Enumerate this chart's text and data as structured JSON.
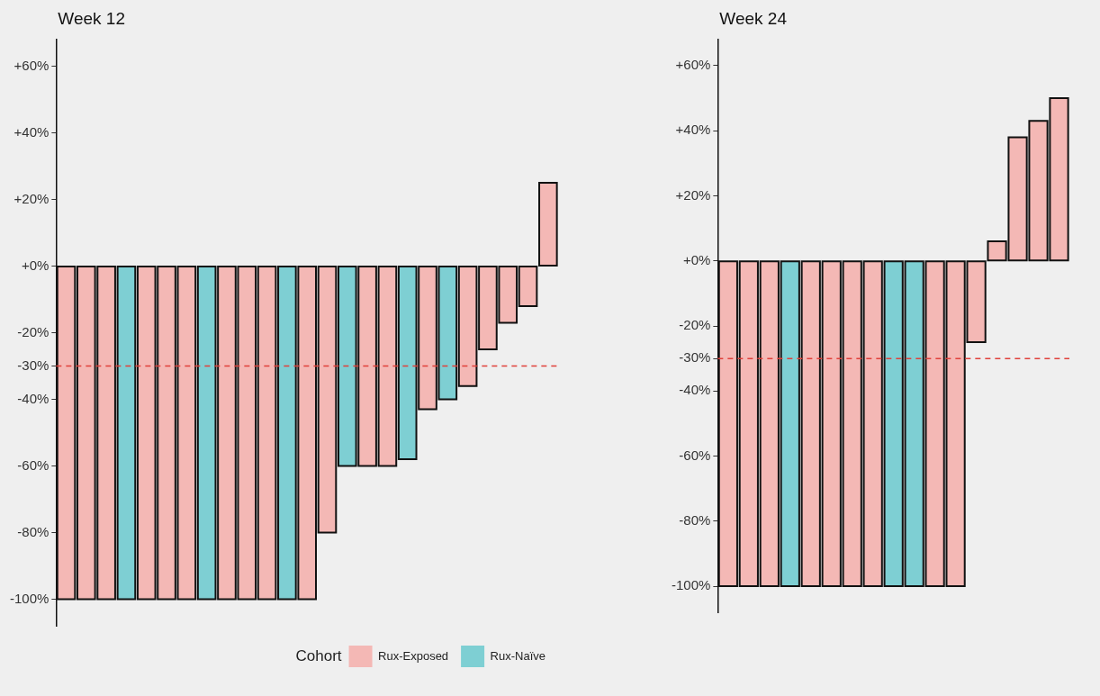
{
  "chart_data": [
    {
      "type": "bar",
      "title": "Week 12",
      "categories": [
        null,
        null,
        null,
        null,
        null,
        null,
        null,
        null,
        null,
        null,
        null,
        null,
        null,
        null,
        null,
        null,
        null,
        null,
        null,
        null,
        null,
        null,
        null,
        null,
        null
      ],
      "series": [
        {
          "name": "Rux-Exposed",
          "color": "#f4b8b5",
          "values": [
            -100,
            -100,
            -100,
            null,
            -100,
            -100,
            -100,
            null,
            -100,
            -100,
            -100,
            null,
            -100,
            -80,
            null,
            -60,
            -60,
            null,
            -43,
            null,
            -36,
            -25,
            -17,
            -12,
            25
          ]
        },
        {
          "name": "Rux-Naïve",
          "color": "#7ecfd3",
          "values": [
            null,
            null,
            null,
            -100,
            null,
            null,
            null,
            -100,
            null,
            null,
            null,
            -100,
            null,
            null,
            -60,
            null,
            null,
            -58,
            null,
            -40,
            null,
            null,
            null,
            null,
            null
          ]
        }
      ],
      "ylim": [
        -108,
        68
      ],
      "yticks": [
        {
          "value": 60,
          "label": "+60%"
        },
        {
          "value": 40,
          "label": "+40%"
        },
        {
          "value": 20,
          "label": "+20%"
        },
        {
          "value": 0,
          "label": "+0%"
        },
        {
          "value": -20,
          "label": "-20%"
        },
        {
          "value": -30,
          "label": "-30%"
        },
        {
          "value": -40,
          "label": "-40%"
        },
        {
          "value": -60,
          "label": "-60%"
        },
        {
          "value": -80,
          "label": "-80%"
        },
        {
          "value": -100,
          "label": "-100%"
        }
      ],
      "ref_lines": [
        {
          "axis": "y",
          "value": -30,
          "color": "#e0403a",
          "line_style": "dashed"
        }
      ],
      "tick_labels": "y",
      "legend": "bottom",
      "legend_title": "Cohort",
      "stacked": true
    },
    {
      "type": "bar",
      "title": "Week 24",
      "categories": [
        null,
        null,
        null,
        null,
        null,
        null,
        null,
        null,
        null,
        null,
        null,
        null,
        null,
        null,
        null,
        null,
        null
      ],
      "series": [
        {
          "color": "#f4b8b5",
          "values": [
            -100,
            -100,
            -100,
            null,
            -100,
            -100,
            -100,
            -100,
            null,
            null,
            -100,
            -100,
            -25,
            6,
            38,
            43,
            50
          ]
        },
        {
          "color": "#7ecfd3",
          "values": [
            null,
            null,
            null,
            -100,
            null,
            null,
            null,
            null,
            -100,
            -100,
            null,
            null,
            null,
            null,
            null,
            null,
            null
          ]
        }
      ],
      "stacked": true,
      "ylim": [
        -108,
        68
      ],
      "yticks": [
        {
          "value": 60,
          "label": "+60%"
        },
        {
          "value": 40,
          "label": "+40%"
        },
        {
          "value": 20,
          "label": "+20%"
        },
        {
          "value": 0,
          "label": "+0%"
        },
        {
          "value": -20,
          "label": "-20%"
        },
        {
          "value": -30,
          "label": "-30%"
        },
        {
          "value": -40,
          "label": "-40%"
        },
        {
          "value": -60,
          "label": "-60%"
        },
        {
          "value": -80,
          "label": "-80%"
        },
        {
          "value": -100,
          "label": "-100%"
        }
      ],
      "ref_lines": [
        {
          "axis": "y",
          "value": -30,
          "color": "#e0403a",
          "line_style": "dashed"
        }
      ],
      "tick_labels": "y"
    }
  ]
}
